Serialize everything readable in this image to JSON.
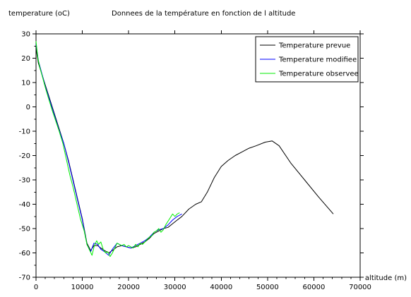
{
  "chart_data": {
    "type": "line",
    "title": "Donnees de la température en fonction de l altitude",
    "ylabel": "temperature (oC)",
    "xlabel": "altitude (m)",
    "xlim": [
      0,
      70000
    ],
    "ylim": [
      -70,
      30
    ],
    "x_ticks": [
      "0",
      "10000",
      "20000",
      "30000",
      "40000",
      "50000",
      "60000",
      "70000"
    ],
    "y_ticks": [
      "30",
      "20",
      "10",
      "0",
      "-10",
      "-20",
      "-30",
      "-40",
      "-50",
      "-60",
      "-70"
    ],
    "x_tick_values": [
      0,
      10000,
      20000,
      30000,
      40000,
      50000,
      60000,
      70000
    ],
    "y_tick_values": [
      30,
      20,
      10,
      0,
      -10,
      -20,
      -30,
      -40,
      -50,
      -60,
      -70
    ],
    "grid": false,
    "legend_position": "top-right",
    "series": [
      {
        "name": "Temperature prevue",
        "color": "#000000",
        "x": [
          0,
          500,
          1000,
          2000,
          3000,
          4000,
          5000,
          6000,
          7000,
          8000,
          9000,
          10000,
          11000,
          11800,
          12500,
          13300,
          14000,
          14800,
          15700,
          16500,
          17500,
          18500,
          19500,
          20500,
          21500,
          22500,
          23500,
          24500,
          25500,
          26500,
          27500,
          28500,
          29500,
          30500,
          31500,
          33000,
          34500,
          35700,
          37000,
          38500,
          40000,
          41500,
          43000,
          44500,
          46000,
          47500,
          49500,
          51000,
          52500,
          55000,
          58000,
          61000,
          64200
        ],
        "y": [
          24,
          18,
          15,
          9,
          3,
          -3,
          -9,
          -15,
          -22,
          -30,
          -38,
          -46,
          -56,
          -59,
          -57,
          -57,
          -58,
          -59,
          -60,
          -59,
          -57.5,
          -57,
          -57.5,
          -58,
          -57.5,
          -56.5,
          -55.5,
          -54,
          -52,
          -51,
          -50,
          -49.5,
          -48,
          -46.5,
          -45,
          -42,
          -40,
          -39,
          -35,
          -29,
          -24.5,
          -22,
          -20,
          -18.5,
          -17,
          -16,
          -14.5,
          -14,
          -16,
          -23,
          -30,
          -37,
          -44
        ]
      },
      {
        "name": "Temperature modifiee",
        "color": "#0000ff",
        "x": [
          0,
          500,
          1000,
          2000,
          3000,
          4000,
          5000,
          6000,
          7000,
          8000,
          9000,
          10000,
          11000,
          11800,
          12500,
          13300,
          14000,
          14800,
          15700,
          16500,
          17500,
          18500,
          19500,
          20500,
          21500,
          22500,
          23500,
          24500,
          25500,
          26500,
          27500,
          28500,
          29500,
          30500,
          31500
        ],
        "y": [
          26,
          19,
          15.5,
          8.5,
          2.5,
          -3.5,
          -9.5,
          -15,
          -22.5,
          -30.5,
          -38.5,
          -46.5,
          -56.5,
          -59.5,
          -56,
          -56.5,
          -58.5,
          -59.5,
          -61,
          -58.5,
          -56,
          -57,
          -57.5,
          -58,
          -57,
          -56,
          -55,
          -53.5,
          -51.5,
          -50.5,
          -50,
          -48.5,
          -46.5,
          -45,
          -44
        ]
      },
      {
        "name": "Temperature observee",
        "color": "#00ee00",
        "x": [
          0,
          400,
          800,
          1300,
          2000,
          2700,
          3500,
          4300,
          5000,
          5800,
          6500,
          7300,
          8000,
          8800,
          9600,
          10400,
          11000,
          11600,
          12100,
          12600,
          13100,
          13500,
          14000,
          14500,
          15000,
          15500,
          16000,
          16500,
          17000,
          17500,
          18000,
          18500,
          19000,
          19500,
          20000,
          20500,
          21000,
          21500,
          22000,
          22500,
          23000,
          23500,
          24000,
          24500,
          25000,
          25500,
          26000,
          26500,
          27000,
          27500,
          28000,
          28500,
          29000,
          29500,
          30000,
          30500,
          31000
        ],
        "y": [
          27,
          20,
          16.5,
          13,
          8,
          3.5,
          -1.5,
          -6,
          -10,
          -15,
          -21,
          -28,
          -33,
          -39.5,
          -46,
          -51,
          -56.5,
          -59,
          -61,
          -57,
          -55,
          -56.5,
          -55.5,
          -58.5,
          -60,
          -59.5,
          -61.5,
          -60,
          -58,
          -56,
          -56.5,
          -57,
          -56.5,
          -57.5,
          -57,
          -57.5,
          -58,
          -56.5,
          -57.5,
          -56,
          -56.5,
          -55.5,
          -54.5,
          -53.5,
          -53,
          -51.5,
          -51,
          -50,
          -51.5,
          -50.5,
          -48.5,
          -47,
          -45.5,
          -44,
          -45,
          -44,
          -43.5
        ]
      }
    ]
  }
}
